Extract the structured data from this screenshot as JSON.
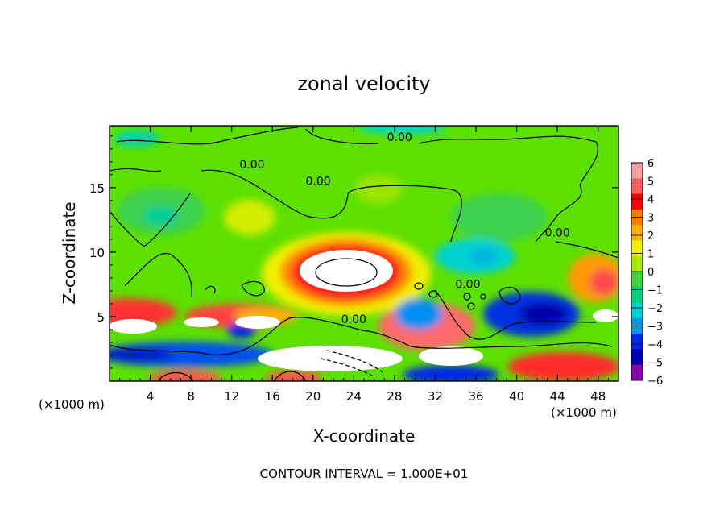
{
  "chart_data": {
    "type": "heatmap",
    "title": "zonal velocity",
    "xlabel": "X-coordinate",
    "ylabel": "Z-coordinate",
    "x_unit_left": "(×1000 m)",
    "x_unit_right": "(×1000 m)",
    "footer": "CONTOUR INTERVAL = 1.000E+01",
    "xlim": [
      0,
      50
    ],
    "ylim": [
      0,
      19.8
    ],
    "x_ticks": [
      4,
      8,
      12,
      16,
      20,
      24,
      28,
      32,
      36,
      40,
      44,
      48
    ],
    "y_ticks": [
      5,
      10,
      15
    ],
    "colorbar": {
      "min": -6,
      "max": 6,
      "labels": [
        6,
        5,
        4,
        3,
        2,
        1,
        0,
        -1,
        -2,
        -3,
        -4,
        -5,
        -6
      ],
      "colors": [
        "#f4a0a0",
        "#ff5c5c",
        "#ff0000",
        "#ff7a00",
        "#ffb300",
        "#f0f000",
        "#a8e800",
        "#3cd23c",
        "#00d282",
        "#00d2d2",
        "#0096f0",
        "#0028e6",
        "#0000b4",
        "#8c00b4"
      ]
    },
    "contour_labels": [
      {
        "text": "0.00",
        "x": 14,
        "z": 16.5
      },
      {
        "text": "0.00",
        "x": 28.5,
        "z": 18.6
      },
      {
        "text": "0.00",
        "x": 20.5,
        "z": 15.2
      },
      {
        "text": "0.00",
        "x": 44,
        "z": 11.2
      },
      {
        "text": "0.00",
        "x": 35.2,
        "z": 7.2
      },
      {
        "text": "0.00",
        "x": 24,
        "z": 4.5
      }
    ]
  }
}
